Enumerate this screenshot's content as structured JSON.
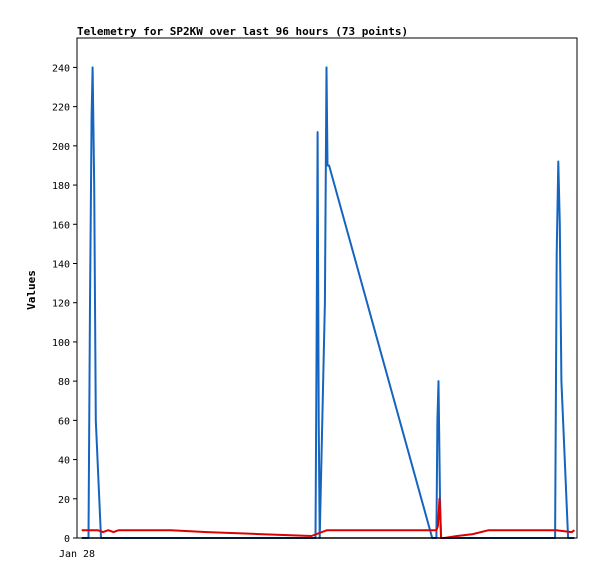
{
  "chart_data": {
    "type": "line",
    "title": "Telemetry for SP2KW over last 96 hours (73 points)",
    "xlabel": "",
    "ylabel": "Values",
    "x_tick_labels": [
      "Jan 28"
    ],
    "ylim": [
      0,
      255
    ],
    "yticks": [
      0,
      20,
      40,
      60,
      80,
      100,
      120,
      140,
      160,
      180,
      200,
      220,
      240
    ],
    "grid": false,
    "legend": "none",
    "x_range": [
      0,
      96
    ],
    "series": [
      {
        "color": "#1565c0",
        "x": [
          0.9,
          2.2,
          2.5,
          2.8,
          3.0,
          3.3,
          3.6,
          4.6,
          45.8,
          46.0,
          46.2,
          46.4,
          46.6,
          47.6,
          47.9,
          48.1,
          48.4,
          68.2,
          69.0,
          69.2,
          69.4,
          69.7,
          69.9,
          70.2,
          70.4,
          90.8,
          91.8,
          92.1,
          92.4,
          92.7,
          93.0,
          94.3,
          95.5
        ],
        "y": [
          0,
          0,
          120,
          215,
          240,
          180,
          60,
          0,
          0,
          100,
          207,
          60,
          0,
          120,
          240,
          190,
          190,
          0,
          0,
          60,
          80,
          20,
          0,
          0,
          0,
          0,
          0,
          145,
          192,
          160,
          80,
          0,
          0
        ]
      },
      {
        "color": "#dd0000",
        "x": [
          0.9,
          4.0,
          5.0,
          6.0,
          7.0,
          8.0,
          18.0,
          25.0,
          35.0,
          45.0,
          48.0,
          55.0,
          65.0,
          68.2,
          69.0,
          69.3,
          69.6,
          69.9,
          70.5,
          73.0,
          76.0,
          79.0,
          82.0,
          85.0,
          88.0,
          92.0,
          95.0,
          95.5
        ],
        "y": [
          4,
          4,
          3,
          4,
          3,
          4,
          4,
          3,
          2,
          1,
          4,
          4,
          4,
          4,
          4,
          6,
          20,
          0,
          0,
          1,
          2,
          4,
          4,
          4,
          4,
          4,
          3,
          4
        ]
      },
      {
        "color": "#000000",
        "x": [
          0.9,
          95.5
        ],
        "y": [
          0,
          0
        ]
      }
    ]
  }
}
